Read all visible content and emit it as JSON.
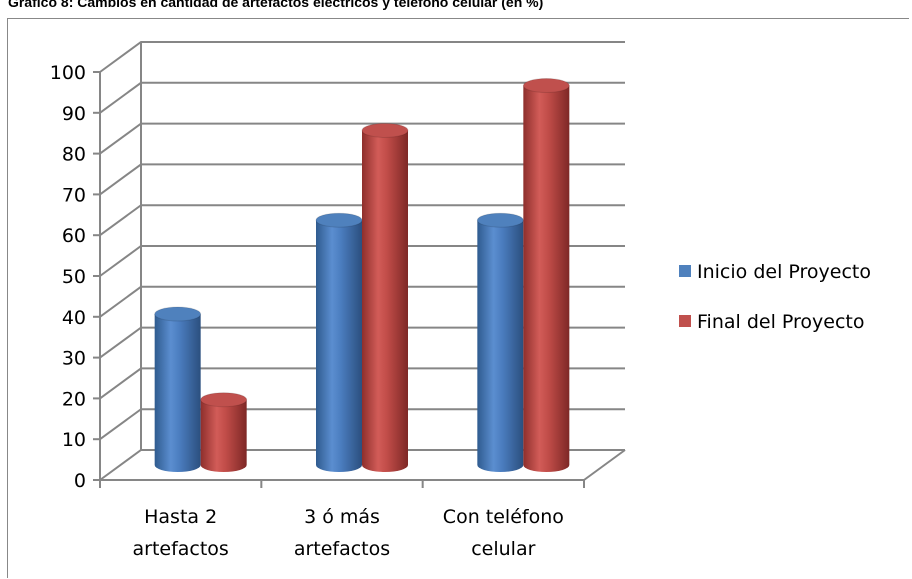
{
  "chart_data": {
    "type": "bar",
    "style": "3d-cylinder",
    "title": "Gráfico 8: Cambios en cantidad de artefactos eléctricos y teléfono celular (en %)",
    "categories": [
      [
        "Hasta 2",
        "artefactos"
      ],
      [
        "3 ó más",
        "artefactos"
      ],
      [
        "Con teléfono",
        "celular"
      ]
    ],
    "series": [
      {
        "name": "Inicio del Proyecto",
        "color": "#4f81bd",
        "values": [
          37,
          60,
          60
        ]
      },
      {
        "name": "Final del Proyecto",
        "color": "#c0504d",
        "values": [
          16,
          82,
          93
        ]
      }
    ],
    "ylim": [
      0,
      100
    ],
    "yticks": [
      0,
      10,
      20,
      30,
      40,
      50,
      60,
      70,
      80,
      90,
      100
    ],
    "grid": true,
    "legend": "right"
  }
}
